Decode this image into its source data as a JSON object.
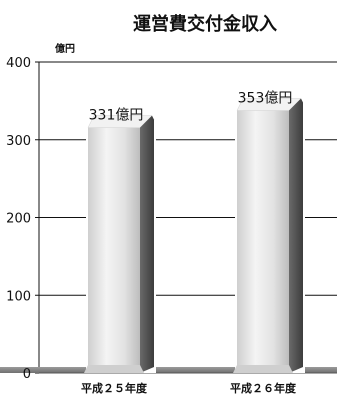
{
  "chart_data": {
    "type": "bar",
    "title": "運営費交付金収入",
    "unit": "億円",
    "categories": [
      "平成２５年度",
      "平成２６年度"
    ],
    "values": [
      331,
      353
    ],
    "value_labels": [
      "331億円",
      "353億円"
    ],
    "ylim": [
      0,
      400
    ],
    "yticks": [
      0,
      100,
      200,
      300,
      400
    ],
    "grid": true,
    "legend": "none",
    "colors": {
      "bar_front": "#e6e6e6",
      "bar_side": "#555555",
      "bar_top": "#f2f2f2",
      "floor": "#8e8e8e",
      "grid": "#111111"
    }
  }
}
